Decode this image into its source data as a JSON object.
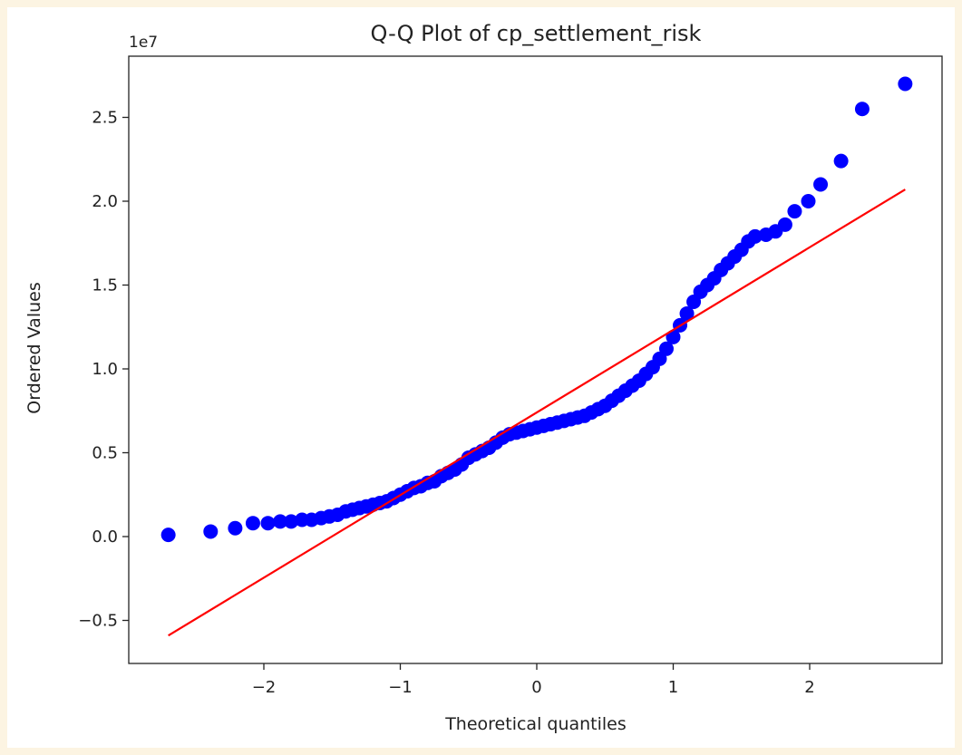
{
  "chart_data": {
    "type": "scatter",
    "title": "Q-Q Plot of cp_settlement_risk",
    "xlabel": "Theoretical quantiles",
    "ylabel": "Ordered Values",
    "y_offset_label": "1e7",
    "xlim": [
      -2.96,
      2.98
    ],
    "ylim": [
      -0.75,
      2.93
    ],
    "xticks": [
      -2,
      -1,
      0,
      1,
      2
    ],
    "xtick_labels": [
      "−2",
      "−1",
      "0",
      "1",
      "2"
    ],
    "yticks": [
      -0.5,
      0.0,
      0.5,
      1.0,
      1.5,
      2.0,
      2.5
    ],
    "ytick_labels": [
      "−0.5",
      "0.0",
      "0.5",
      "1.0",
      "1.5",
      "2.0",
      "2.5"
    ],
    "grid": false,
    "point_color": "#0000ff",
    "line_color": "#ff0000",
    "fit_line": {
      "x": [
        -2.7,
        2.7
      ],
      "y": [
        -0.59,
        2.07
      ]
    },
    "points": {
      "x": [
        -2.7,
        -2.39,
        -2.21,
        -2.08,
        -1.97,
        -1.88,
        -1.8,
        -1.72,
        -1.65,
        -1.58,
        -1.52,
        -1.46,
        -1.4,
        -1.35,
        -1.3,
        -1.25,
        -1.2,
        -1.15,
        -1.1,
        -1.05,
        -1.0,
        -0.95,
        -0.9,
        -0.85,
        -0.8,
        -0.75,
        -0.7,
        -0.65,
        -0.6,
        -0.55,
        -0.5,
        -0.45,
        -0.4,
        -0.35,
        -0.3,
        -0.25,
        -0.2,
        -0.15,
        -0.1,
        -0.05,
        0.0,
        0.05,
        0.1,
        0.15,
        0.2,
        0.25,
        0.3,
        0.35,
        0.4,
        0.45,
        0.5,
        0.55,
        0.6,
        0.65,
        0.7,
        0.75,
        0.8,
        0.85,
        0.9,
        0.95,
        1.0,
        1.05,
        1.1,
        1.15,
        1.2,
        1.25,
        1.3,
        1.35,
        1.4,
        1.45,
        1.5,
        1.55,
        1.6,
        1.68,
        1.75,
        1.82,
        1.89,
        1.99,
        2.08,
        2.23,
        2.385,
        2.7
      ],
      "y": [
        0.01,
        0.03,
        0.05,
        0.08,
        0.08,
        0.09,
        0.09,
        0.1,
        0.1,
        0.11,
        0.12,
        0.13,
        0.15,
        0.16,
        0.17,
        0.18,
        0.19,
        0.2,
        0.21,
        0.23,
        0.25,
        0.27,
        0.29,
        0.3,
        0.32,
        0.33,
        0.36,
        0.38,
        0.4,
        0.43,
        0.47,
        0.49,
        0.51,
        0.53,
        0.56,
        0.59,
        0.61,
        0.62,
        0.63,
        0.64,
        0.65,
        0.66,
        0.67,
        0.68,
        0.69,
        0.7,
        0.71,
        0.72,
        0.74,
        0.76,
        0.78,
        0.81,
        0.84,
        0.87,
        0.9,
        0.93,
        0.97,
        1.01,
        1.06,
        1.12,
        1.19,
        1.26,
        1.33,
        1.4,
        1.46,
        1.5,
        1.54,
        1.59,
        1.63,
        1.67,
        1.71,
        1.76,
        1.79,
        1.8,
        1.82,
        1.86,
        1.94,
        2.0,
        2.1,
        2.24,
        2.55,
        2.7
      ]
    }
  }
}
